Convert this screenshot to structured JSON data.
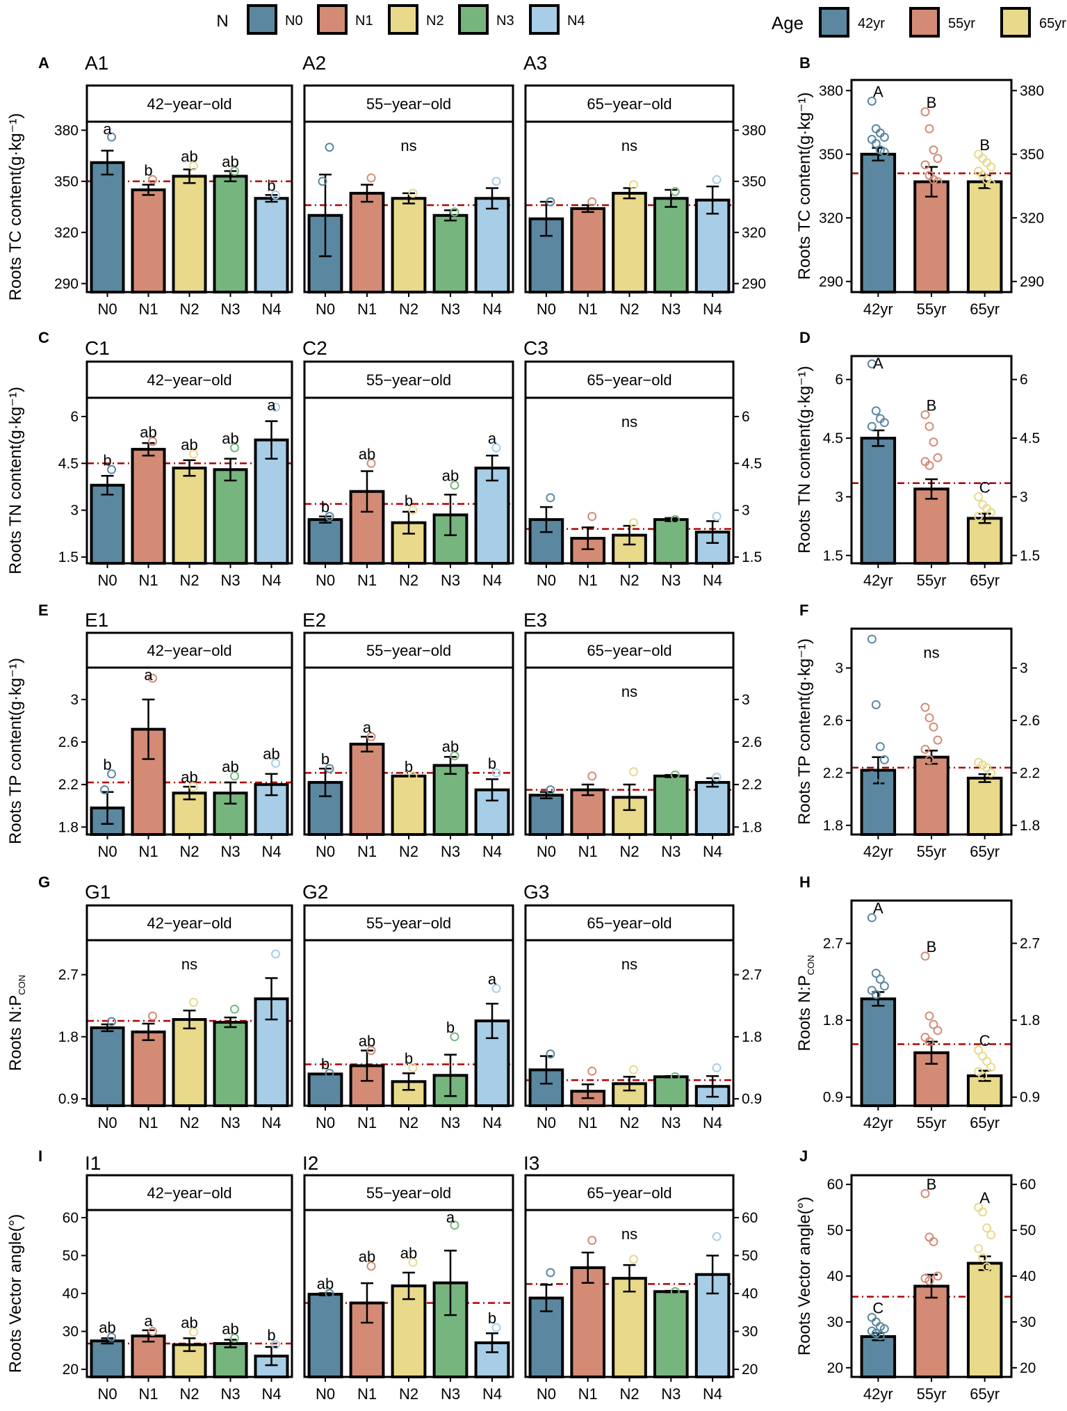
{
  "legend_n": {
    "title": "N",
    "items": [
      {
        "label": "N0",
        "color": "#5b88a0"
      },
      {
        "label": "N1",
        "color": "#d38b76"
      },
      {
        "label": "N2",
        "color": "#e8d98b"
      },
      {
        "label": "N3",
        "color": "#77b57f"
      },
      {
        "label": "N4",
        "color": "#a8cde6"
      }
    ]
  },
  "legend_age": {
    "title": "Age",
    "items": [
      {
        "label": "42yr",
        "color": "#5b88a0"
      },
      {
        "label": "55yr",
        "color": "#d38b76"
      },
      {
        "label": "65yr",
        "color": "#e8d98b"
      }
    ]
  },
  "chart_data": [
    {
      "type": "bar",
      "row_label": "A",
      "ylabel": "Roots TC content(g·kg⁻¹)",
      "ylim": [
        285,
        385
      ],
      "yticks": [
        290,
        320,
        350,
        380
      ],
      "yticklabels": [
        "290",
        "320",
        "350",
        "380"
      ],
      "categories": [
        "N0",
        "N1",
        "N2",
        "N3",
        "N4"
      ],
      "panels": [
        {
          "tag": "A1",
          "strip": "42−year−old",
          "ns": "",
          "mean_line": 350,
          "values": [
            361,
            345,
            353,
            353,
            340
          ],
          "errors": [
            7,
            3,
            4,
            3,
            2
          ],
          "points": [
            [
              376
            ],
            [
              351
            ],
            [
              359
            ],
            [
              356
            ],
            [
              342
            ]
          ],
          "letters": [
            "a",
            "b",
            "ab",
            "ab",
            "b"
          ]
        },
        {
          "tag": "A2",
          "strip": "55−year−old",
          "ns": "ns",
          "mean_line": 336,
          "values": [
            330,
            343,
            340,
            330,
            340
          ],
          "errors": [
            24,
            5,
            3,
            3,
            6
          ],
          "points": [
            [
              370,
              350
            ],
            [
              352
            ],
            [
              343
            ],
            [
              332
            ],
            [
              350
            ]
          ],
          "letters": [
            "",
            "",
            "",
            "",
            ""
          ]
        },
        {
          "tag": "A3",
          "strip": "65−year−old",
          "ns": "ns",
          "mean_line": 336,
          "values": [
            328,
            334,
            343,
            340,
            339
          ],
          "errors": [
            10,
            2,
            3,
            5,
            8
          ],
          "points": [
            [
              338
            ],
            [
              338
            ],
            [
              348
            ],
            [
              344
            ],
            [
              351
            ]
          ],
          "letters": [
            "",
            "",
            "",
            "",
            ""
          ]
        }
      ],
      "age_panel": {
        "tag": "B",
        "categories": [
          "42yr",
          "55yr",
          "65yr"
        ],
        "values": [
          350,
          337,
          337
        ],
        "errors": [
          3,
          7,
          3
        ],
        "points": [
          [
            375,
            362,
            360,
            358,
            357,
            355,
            352,
            351
          ],
          [
            370,
            362,
            352,
            348,
            345,
            340,
            338,
            337
          ],
          [
            350,
            348,
            346,
            344,
            342,
            340,
            338,
            336
          ]
        ],
        "letters": [
          "A",
          "B",
          "B"
        ],
        "ns": "",
        "mean_line": 341
      }
    },
    {
      "type": "bar",
      "row_label": "C",
      "ylabel": "Roots TN content(g·kg⁻¹)",
      "ylim": [
        1.3,
        6.6
      ],
      "yticks": [
        1.5,
        3,
        4.5,
        6
      ],
      "yticklabels": [
        "1.5",
        "3",
        "4.5",
        "6"
      ],
      "categories": [
        "N0",
        "N1",
        "N2",
        "N3",
        "N4"
      ],
      "panels": [
        {
          "tag": "C1",
          "strip": "42−year−old",
          "ns": "",
          "mean_line": 4.5,
          "values": [
            3.8,
            4.95,
            4.35,
            4.3,
            5.25
          ],
          "errors": [
            0.3,
            0.2,
            0.25,
            0.35,
            0.6
          ],
          "points": [
            [
              4.3
            ],
            [
              5.2
            ],
            [
              4.8
            ],
            [
              5.0
            ],
            [
              6.3
            ]
          ],
          "letters": [
            "b",
            "ab",
            "ab",
            "ab",
            "a"
          ]
        },
        {
          "tag": "C2",
          "strip": "55−year−old",
          "ns": "",
          "mean_line": 3.2,
          "values": [
            2.7,
            3.6,
            2.6,
            2.85,
            4.35
          ],
          "errors": [
            0.1,
            0.65,
            0.35,
            0.65,
            0.4
          ],
          "points": [
            [
              2.8
            ],
            [
              4.5
            ],
            [
              3.0
            ],
            [
              3.8
            ],
            [
              5.0
            ]
          ],
          "letters": [
            "b",
            "ab",
            "b",
            "ab",
            "a"
          ]
        },
        {
          "tag": "C3",
          "strip": "65−year−old",
          "ns": "ns",
          "mean_line": 2.4,
          "values": [
            2.7,
            2.1,
            2.2,
            2.7,
            2.3
          ],
          "errors": [
            0.4,
            0.35,
            0.3,
            0.05,
            0.35
          ],
          "points": [
            [
              3.4
            ],
            [
              2.8
            ],
            [
              2.6
            ],
            [
              2.7
            ],
            [
              2.8
            ]
          ],
          "letters": [
            "",
            "",
            "",
            "",
            ""
          ]
        }
      ],
      "age_panel": {
        "tag": "D",
        "categories": [
          "42yr",
          "55yr",
          "65yr"
        ],
        "values": [
          4.5,
          3.2,
          2.45
        ],
        "errors": [
          0.2,
          0.25,
          0.12
        ],
        "points": [
          [
            6.4,
            5.2,
            5.0,
            4.9,
            4.8
          ],
          [
            5.1,
            4.8,
            4.4,
            4.0,
            3.9,
            3.8,
            2.8
          ],
          [
            3.0,
            2.8,
            2.7,
            2.6,
            2.5
          ]
        ],
        "letters": [
          "A",
          "B",
          "C"
        ],
        "ns": "",
        "mean_line": 3.35
      }
    },
    {
      "type": "bar",
      "row_label": "E",
      "ylabel": "Roots TP content(g·kg⁻¹)",
      "ylim": [
        1.73,
        3.3
      ],
      "yticks": [
        1.8,
        2.2,
        2.6,
        3
      ],
      "yticklabels": [
        "1.8",
        "2.2",
        "2.6",
        "3"
      ],
      "categories": [
        "N0",
        "N1",
        "N2",
        "N3",
        "N4"
      ],
      "panels": [
        {
          "tag": "E1",
          "strip": "42−year−old",
          "ns": "",
          "mean_line": 2.22,
          "values": [
            1.98,
            2.72,
            2.12,
            2.12,
            2.2
          ],
          "errors": [
            0.15,
            0.28,
            0.06,
            0.1,
            0.1
          ],
          "points": [
            [
              2.3,
              2.15
            ],
            [
              3.2
            ],
            [
              2.18
            ],
            [
              2.28
            ],
            [
              2.4
            ]
          ],
          "letters": [
            "b",
            "a",
            "ab",
            "ab",
            "ab"
          ]
        },
        {
          "tag": "E2",
          "strip": "55−year−old",
          "ns": "",
          "mean_line": 2.31,
          "values": [
            2.22,
            2.58,
            2.28,
            2.38,
            2.15
          ],
          "errors": [
            0.13,
            0.07,
            0.0,
            0.08,
            0.1
          ],
          "points": [
            [
              2.35
            ],
            [
              2.65
            ],
            [
              2.28
            ],
            [
              2.47
            ],
            [
              2.31
            ]
          ],
          "letters": [
            "b",
            "a",
            "b",
            "ab",
            "b"
          ]
        },
        {
          "tag": "E3",
          "strip": "65−year−old",
          "ns": "ns",
          "mean_line": 2.15,
          "values": [
            2.1,
            2.15,
            2.08,
            2.28,
            2.22
          ],
          "errors": [
            0.03,
            0.05,
            0.12,
            0.01,
            0.04
          ],
          "points": [
            [
              2.15
            ],
            [
              2.28
            ],
            [
              2.32
            ],
            [
              2.29
            ],
            [
              2.27
            ]
          ],
          "letters": [
            "",
            "",
            "",
            "",
            ""
          ]
        }
      ],
      "age_panel": {
        "tag": "F",
        "categories": [
          "42yr",
          "55yr",
          "65yr"
        ],
        "values": [
          2.22,
          2.32,
          2.16
        ],
        "errors": [
          0.1,
          0.05,
          0.03
        ],
        "points": [
          [
            3.22,
            2.72,
            2.4,
            2.3,
            2.18,
            2.12,
            2.0
          ],
          [
            2.7,
            2.62,
            2.55,
            2.45,
            2.38,
            2.3
          ],
          [
            2.28,
            2.26,
            2.24,
            2.2
          ]
        ],
        "letters": [
          "",
          "",
          ""
        ],
        "ns": "ns",
        "mean_line": 2.24
      }
    },
    {
      "type": "bar",
      "row_label": "G",
      "ylabel": "Roots N:P",
      "ylabel_sub": "CON",
      "ylim": [
        0.8,
        3.2
      ],
      "yticks": [
        0.9,
        1.8,
        2.7
      ],
      "yticklabels": [
        "0.9",
        "1.8",
        "2.7"
      ],
      "categories": [
        "N0",
        "N1",
        "N2",
        "N3",
        "N4"
      ],
      "panels": [
        {
          "tag": "G1",
          "strip": "42−year−old",
          "ns": "ns",
          "mean_line": 2.03,
          "values": [
            1.93,
            1.87,
            2.05,
            2.01,
            2.35
          ],
          "errors": [
            0.05,
            0.12,
            0.13,
            0.07,
            0.3
          ],
          "points": [
            [
              2.02
            ],
            [
              2.1
            ],
            [
              2.3
            ],
            [
              2.2
            ],
            [
              3.0
            ]
          ],
          "letters": [
            "",
            "",
            "",
            "",
            ""
          ]
        },
        {
          "tag": "G2",
          "strip": "55−year−old",
          "ns": "",
          "mean_line": 1.4,
          "values": [
            1.26,
            1.38,
            1.15,
            1.24,
            2.03
          ],
          "errors": [
            0.0,
            0.22,
            0.12,
            0.3,
            0.25
          ],
          "points": [
            [
              1.27
            ],
            [
              1.6
            ],
            [
              1.35
            ],
            [
              1.8
            ],
            [
              2.5
            ]
          ],
          "letters": [
            "b",
            "ab",
            "b",
            "b",
            "a"
          ]
        },
        {
          "tag": "G3",
          "strip": "65−year−old",
          "ns": "ns",
          "mean_line": 1.17,
          "values": [
            1.32,
            1.01,
            1.12,
            1.22,
            1.08
          ],
          "errors": [
            0.2,
            0.1,
            0.1,
            0.01,
            0.15
          ],
          "points": [
            [
              1.55
            ],
            [
              1.3
            ],
            [
              1.32
            ],
            [
              1.22
            ],
            [
              1.35
            ]
          ],
          "letters": [
            "",
            "",
            "",
            "",
            ""
          ]
        }
      ],
      "age_panel": {
        "tag": "H",
        "categories": [
          "42yr",
          "55yr",
          "65yr"
        ],
        "values": [
          2.05,
          1.42,
          1.15
        ],
        "errors": [
          0.08,
          0.13,
          0.06
        ],
        "points": [
          [
            3.0,
            2.35,
            2.28,
            2.2,
            2.15,
            2.1
          ],
          [
            2.55,
            1.85,
            1.75,
            1.68,
            1.6,
            1.55
          ],
          [
            1.45,
            1.38,
            1.32,
            1.25,
            1.2,
            1.15
          ]
        ],
        "letters": [
          "A",
          "B",
          "C"
        ],
        "ns": "",
        "mean_line": 1.52
      }
    },
    {
      "type": "bar",
      "row_label": "I",
      "ylabel": "Roots Vector angle(°)",
      "ylim": [
        18,
        62
      ],
      "yticks": [
        20,
        30,
        40,
        50,
        60
      ],
      "yticklabels": [
        "20",
        "30",
        "40",
        "50",
        "60"
      ],
      "categories": [
        "N0",
        "N1",
        "N2",
        "N3",
        "N4"
      ],
      "panels": [
        {
          "tag": "I1",
          "strip": "42−year−old",
          "ns": "",
          "mean_line": 26.8,
          "values": [
            27.5,
            28.8,
            26.5,
            26.8,
            23.5
          ],
          "errors": [
            0.7,
            1.5,
            1.7,
            1.0,
            2.4
          ],
          "points": [
            [
              28.5
            ],
            [
              30.0
            ],
            [
              29.8
            ],
            [
              28.2
            ],
            [
              26.5
            ]
          ],
          "letters": [
            "ab",
            "a",
            "ab",
            "ab",
            "b"
          ]
        },
        {
          "tag": "I2",
          "strip": "55−year−old",
          "ns": "",
          "mean_line": 37.5,
          "values": [
            39.8,
            37.5,
            42.0,
            42.8,
            27.0
          ],
          "errors": [
            0.3,
            5.2,
            3.5,
            8.5,
            2.5
          ],
          "points": [
            [
              40.0
            ],
            [
              47.2
            ],
            [
              48.2
            ],
            [
              58.0
            ],
            [
              31.0
            ]
          ],
          "letters": [
            "ab",
            "ab",
            "ab",
            "a",
            "b"
          ]
        },
        {
          "tag": "I3",
          "strip": "65−year−old",
          "ns": "ns",
          "mean_line": 42.5,
          "values": [
            38.8,
            46.8,
            44.0,
            40.5,
            45.0
          ],
          "errors": [
            3.5,
            4.0,
            3.5,
            0.2,
            5.0
          ],
          "points": [
            [
              45.5
            ],
            [
              54.0
            ],
            [
              49.0
            ],
            [
              40.5
            ],
            [
              55.0
            ]
          ],
          "letters": [
            "",
            "",
            "",
            "",
            ""
          ]
        }
      ],
      "age_panel": {
        "tag": "J",
        "categories": [
          "42yr",
          "55yr",
          "65yr"
        ],
        "values": [
          26.8,
          37.8,
          42.8
        ],
        "errors": [
          0.8,
          2.5,
          1.5
        ],
        "points": [
          [
            31.0,
            30.0,
            29.0,
            28.5,
            28.0,
            27.5,
            27.0
          ],
          [
            58.0,
            48.5,
            47.5,
            40.0,
            39.5,
            39.0
          ],
          [
            55.0,
            54.0,
            50.5,
            49.0,
            46.0,
            44.0,
            42.0
          ]
        ],
        "letters": [
          "C",
          "B",
          "A"
        ],
        "ns": "",
        "mean_line": 35.5
      }
    }
  ]
}
